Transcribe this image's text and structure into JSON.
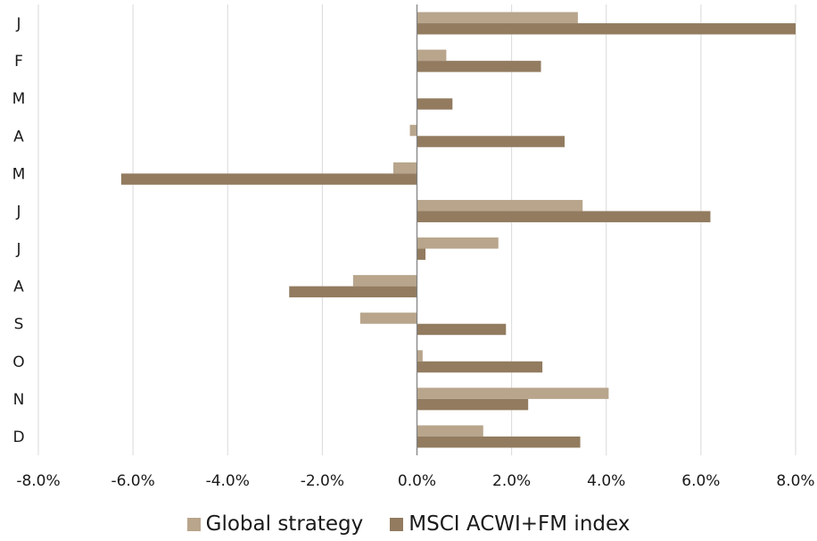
{
  "chart_data": {
    "type": "bar",
    "orientation": "horizontal",
    "categories": [
      "J",
      "F",
      "M",
      "A",
      "M",
      "J",
      "J",
      "A",
      "S",
      "O",
      "N",
      "D"
    ],
    "series": [
      {
        "name": "Global strategy",
        "color": "#b8a58c",
        "values": [
          3.4,
          0.62,
          0.0,
          -0.15,
          -0.5,
          3.5,
          1.72,
          -1.35,
          -1.2,
          0.12,
          4.05,
          1.4
        ]
      },
      {
        "name": "MSCI ACWI+FM index",
        "color": "#927b5f",
        "values": [
          8.0,
          2.62,
          0.75,
          3.12,
          -6.25,
          6.2,
          0.18,
          -2.7,
          1.88,
          2.65,
          2.35,
          3.45
        ]
      }
    ],
    "xlim": [
      -8.0,
      8.0
    ],
    "xticks": [
      "-8.0%",
      "-6.0%",
      "-4.0%",
      "-2.0%",
      "0.0%",
      "2.0%",
      "4.0%",
      "6.0%",
      "8.0%"
    ],
    "grid": true,
    "legend_position": "bottom"
  }
}
